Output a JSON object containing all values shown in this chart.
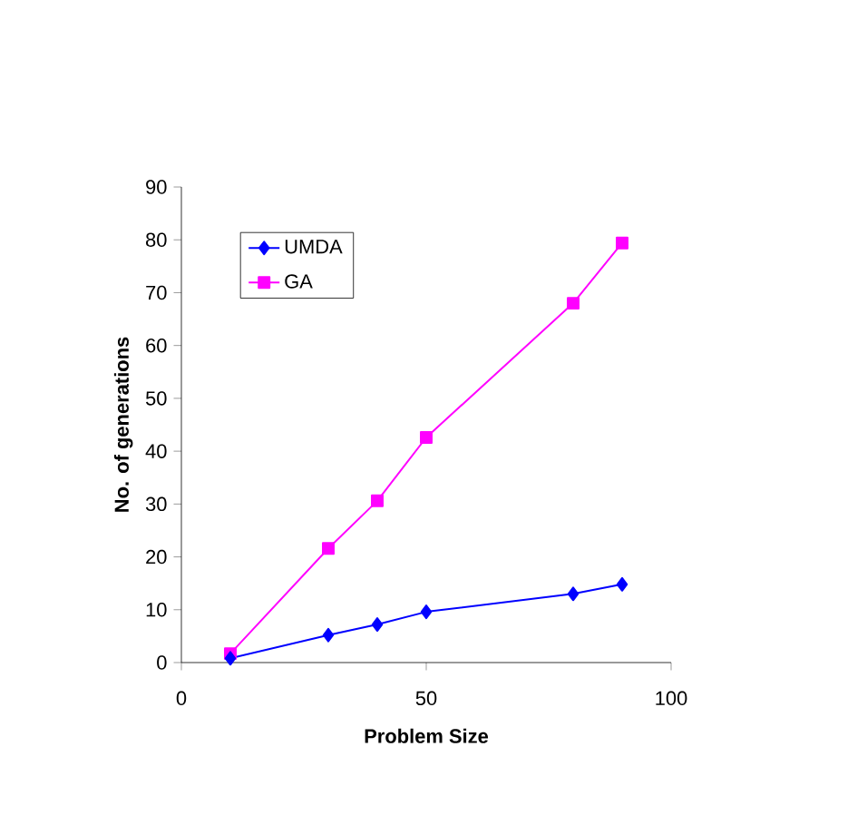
{
  "chart_data": {
    "type": "line",
    "xlabel": "Problem Size",
    "ylabel": "No. of generations",
    "x": [
      10,
      30,
      40,
      50,
      80,
      90
    ],
    "series": [
      {
        "name": "UMDA",
        "color": "#0000ff",
        "marker": "diamond",
        "values": [
          0.8,
          5.2,
          7.2,
          9.6,
          13,
          14.8
        ]
      },
      {
        "name": "GA",
        "color": "#ff00ff",
        "marker": "square",
        "values": [
          1.7,
          21.6,
          30.6,
          42.6,
          68,
          79.4
        ]
      }
    ],
    "xlim": [
      0,
      100
    ],
    "xticks": [
      0,
      50,
      100
    ],
    "ylim": [
      0,
      90
    ],
    "yticks": [
      0,
      10,
      20,
      30,
      40,
      50,
      60,
      70,
      80,
      90
    ],
    "grid": false,
    "legend": "top left"
  }
}
